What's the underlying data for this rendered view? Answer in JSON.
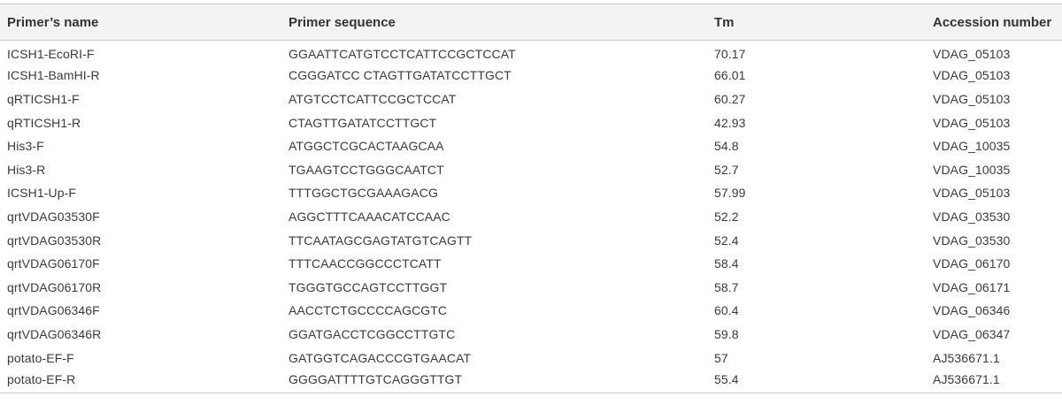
{
  "table": {
    "headers": [
      "Primer’s name",
      "Primer sequence",
      "Tm",
      "Accession number"
    ],
    "rows": [
      [
        "ICSH1-EcoRI-F",
        "GGAATTCATGTCCTCATTCCGCTCCAT",
        "70.17",
        "VDAG_05103"
      ],
      [
        "ICSH1-BamHI-R",
        "CGGGATCC CTAGTTGATATCCTTGCT",
        "66.01",
        "VDAG_05103"
      ],
      [
        "qRTICSH1-F",
        "ATGTCCTCATTCCGCTCCAT",
        "60.27",
        "VDAG_05103"
      ],
      [
        "qRTICSH1-R",
        "CTAGTTGATATCCTTGCT",
        "42.93",
        "VDAG_05103"
      ],
      [
        "His3-F",
        "ATGGCTCGCACTAAGCAA",
        "54.8",
        "VDAG_10035"
      ],
      [
        "His3-R",
        "TGAAGTCCTGGGCAATCT",
        "52.7",
        "VDAG_10035"
      ],
      [
        "ICSH1-Up-F",
        "TTTGGCTGCGAAAGACG",
        "57.99",
        "VDAG_05103"
      ],
      [
        "qrtVDAG03530F",
        "AGGCTTTCAAACATCCAAC",
        "52.2",
        "VDAG_03530"
      ],
      [
        "qrtVDAG03530R",
        "TTCAATAGCGAGTATGTCAGTT",
        "52.4",
        "VDAG_03530"
      ],
      [
        "qrtVDAG06170F",
        "TTTCAACCGGCCCTCATT",
        "58.4",
        "VDAG_06170"
      ],
      [
        "qrtVDAG06170R",
        "TGGGTGCCAGTCCTTGGT",
        "58.7",
        "VDAG_06171"
      ],
      [
        "qrtVDAG06346F",
        "AACCTCTGCCCCAGCGTC",
        "60.4",
        "VDAG_06346"
      ],
      [
        "qrtVDAG06346R",
        "GGATGACCTCGGCCTTGTC",
        "59.8",
        "VDAG_06347"
      ],
      [
        "potato-EF-F",
        "GATGGTCAGACCCGTGAACAT",
        "57",
        "AJ536671.1"
      ],
      [
        "potato-EF-R",
        "GGGGATTTTGTCAGGGTTGT",
        "55.4",
        "AJ536671.1"
      ]
    ]
  }
}
